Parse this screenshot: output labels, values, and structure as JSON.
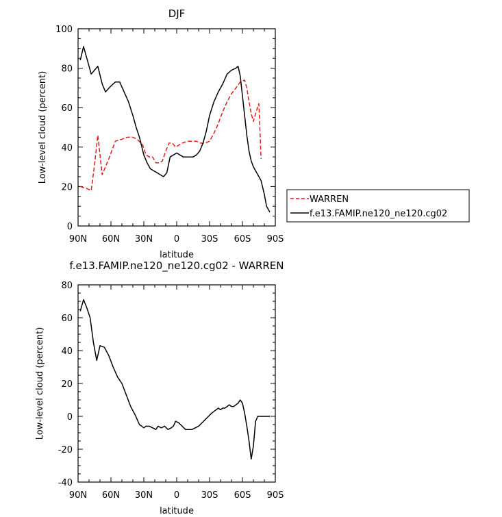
{
  "charts": [
    {
      "title": "DJF",
      "ylabel": "Low-level cloud (percent)",
      "xlabel": "latitude",
      "ylim": [
        0,
        100
      ],
      "yticks": [
        "0",
        "20",
        "40",
        "60",
        "80",
        "100"
      ]
    },
    {
      "title": "f.e13.FAMIP.ne120_ne120.cg02 - WARREN",
      "ylabel": "Low-level cloud (percent)",
      "xlabel": "latitude",
      "ylim": [
        -40,
        80
      ],
      "yticks": [
        "-40",
        "-20",
        "0",
        "20",
        "40",
        "60",
        "80"
      ]
    }
  ],
  "xticks": [
    "90N",
    "60N",
    "30N",
    "0",
    "30S",
    "60S",
    "90S"
  ],
  "legend": {
    "items": [
      {
        "label": "WARREN",
        "color": "#e41a1c",
        "dash": "dashed"
      },
      {
        "label": "f.e13.FAMIP.ne120_ne120.cg02",
        "color": "#000000",
        "dash": "solid"
      }
    ]
  },
  "chart_data": [
    {
      "type": "line",
      "title": "DJF",
      "xlabel": "latitude",
      "ylabel": "Low-level cloud (percent)",
      "xlim": [
        90,
        -90
      ],
      "ylim": [
        0,
        100
      ],
      "x_tick_labels": [
        "90N",
        "60N",
        "30N",
        "0",
        "30S",
        "60S",
        "90S"
      ],
      "legend_position": "right",
      "series": [
        {
          "name": "WARREN",
          "color": "#e41a1c",
          "style": "dashed",
          "x": [
            88,
            82,
            78,
            75,
            72,
            68,
            62,
            56,
            50,
            45,
            40,
            36,
            31,
            28,
            25,
            22,
            19,
            16,
            13,
            10,
            7,
            4,
            1,
            -2,
            -5,
            -10,
            -14,
            -18,
            -22,
            -26,
            -30,
            -34,
            -38,
            -42,
            -46,
            -50,
            -54,
            -58,
            -62,
            -64,
            -66,
            -68,
            -70,
            -72,
            -75,
            -77
          ],
          "values": [
            20,
            19,
            18,
            31,
            46,
            26,
            34,
            43,
            44,
            45,
            45,
            44,
            41,
            36,
            35,
            35,
            32,
            32,
            33,
            38,
            42,
            42,
            40,
            41,
            42,
            43,
            43,
            43,
            42,
            42,
            43,
            47,
            52,
            58,
            63,
            67,
            70,
            73,
            74,
            70,
            63,
            57,
            53,
            57,
            62,
            34
          ]
        },
        {
          "name": "f.e13.FAMIP.ne120_ne120.cg02",
          "color": "#000000",
          "style": "solid",
          "x": [
            88,
            85,
            82,
            78,
            75,
            72,
            68,
            65,
            60,
            56,
            52,
            48,
            44,
            40,
            37,
            34,
            30,
            27,
            24,
            21,
            18,
            15,
            12,
            9,
            6,
            3,
            0,
            -3,
            -6,
            -9,
            -12,
            -15,
            -18,
            -21,
            -24,
            -27,
            -30,
            -34,
            -38,
            -42,
            -46,
            -50,
            -54,
            -56,
            -58,
            -60,
            -62,
            -64,
            -66,
            -68,
            -70,
            -72,
            -74,
            -77,
            -80,
            -82,
            -85
          ],
          "values": [
            84,
            91,
            85,
            77,
            79,
            81,
            72,
            68,
            71,
            73,
            73,
            68,
            63,
            56,
            50,
            45,
            36,
            32,
            29,
            28,
            27,
            26,
            25,
            27,
            35,
            36,
            37,
            36,
            35,
            35,
            35,
            35,
            36,
            38,
            42,
            48,
            56,
            63,
            68,
            72,
            77,
            79,
            80,
            81,
            76,
            66,
            56,
            46,
            38,
            33,
            30,
            28,
            26,
            23,
            16,
            10,
            7
          ]
        }
      ]
    },
    {
      "type": "line",
      "title": "f.e13.FAMIP.ne120_ne120.cg02 - WARREN",
      "xlabel": "latitude",
      "ylabel": "Low-level cloud (percent)",
      "xlim": [
        90,
        -90
      ],
      "ylim": [
        -40,
        80
      ],
      "x_tick_labels": [
        "90N",
        "60N",
        "30N",
        "0",
        "30S",
        "60S",
        "90S"
      ],
      "series": [
        {
          "name": "",
          "color": "#000000",
          "style": "solid",
          "x": [
            88,
            85,
            82,
            79,
            76,
            73,
            70,
            66,
            62,
            58,
            54,
            50,
            46,
            42,
            38,
            34,
            30,
            28,
            25,
            22,
            19,
            17,
            14,
            11,
            8,
            5,
            3,
            1,
            -2,
            -5,
            -8,
            -11,
            -14,
            -17,
            -20,
            -23,
            -26,
            -29,
            -32,
            -34,
            -36,
            -38,
            -40,
            -42,
            -44,
            -46,
            -48,
            -50,
            -52,
            -54,
            -56,
            -58,
            -60,
            -62,
            -64,
            -66,
            -68,
            -70,
            -72,
            -74,
            -76,
            -78,
            -80,
            -82,
            -85
          ],
          "values": [
            64,
            71,
            66,
            60,
            45,
            34,
            43,
            42,
            37,
            30,
            24,
            20,
            13,
            6,
            1,
            -5,
            -7,
            -6,
            -6,
            -7,
            -8,
            -6,
            -7,
            -6,
            -8,
            -7,
            -6,
            -3,
            -4,
            -6,
            -8,
            -8,
            -8,
            -7,
            -6,
            -4,
            -2,
            0,
            2,
            3,
            4,
            5,
            4,
            5,
            5,
            6,
            7,
            6,
            6,
            7,
            8,
            10,
            8,
            2,
            -6,
            -15,
            -26,
            -18,
            -3,
            0,
            0,
            0,
            0,
            0,
            0
          ]
        }
      ]
    }
  ]
}
